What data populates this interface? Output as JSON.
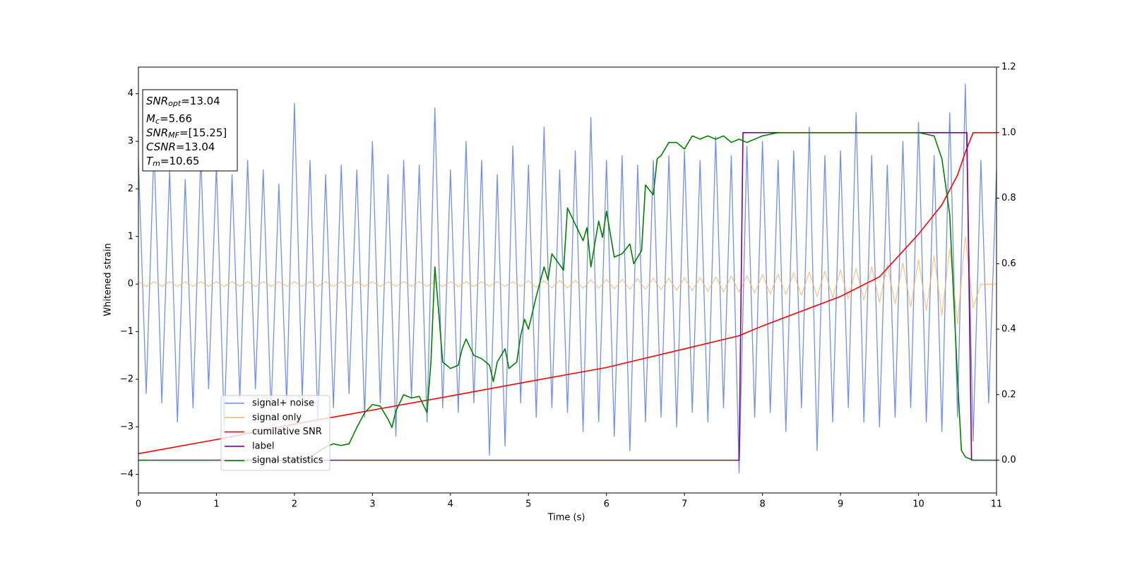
{
  "chart_data": {
    "type": "line",
    "xlabel": "Time (s)",
    "ylabel": "Whitened strain",
    "xlim": [
      0,
      11
    ],
    "ylim": [
      -4.39,
      4.56
    ],
    "y2lim": [
      -0.1,
      1.2
    ],
    "xticks": [
      0,
      1,
      2,
      3,
      4,
      5,
      6,
      7,
      8,
      9,
      10,
      11
    ],
    "yticks": [
      {
        "value": -4,
        "label": "−4"
      },
      {
        "value": -3,
        "label": "−3"
      },
      {
        "value": -2,
        "label": "−2"
      },
      {
        "value": -1,
        "label": "−1"
      },
      0,
      1,
      2,
      3,
      4
    ],
    "y2ticks": [
      {
        "value": 0,
        "label": "0.0"
      },
      0.2,
      0.4,
      0.6,
      0.8,
      {
        "value": 1,
        "label": "1.0"
      },
      1.2
    ],
    "legend_loc": "lower left",
    "annotations": [
      {
        "base": "SNR",
        "sub": "opt",
        "rest": "=13.04"
      },
      {
        "base": "M",
        "sub": "c",
        "rest": "=5.66"
      },
      {
        "base": "SNR",
        "sub": "MF",
        "rest": "=[15.25]"
      },
      {
        "base": "CSNR",
        "rest": "=13.04"
      },
      {
        "base": "T",
        "sub": "m",
        "rest": "=10.65"
      }
    ],
    "x": [
      0,
      0.1,
      0.2,
      0.3,
      0.4,
      0.5,
      0.6,
      0.7,
      0.8,
      0.9,
      1,
      1.1,
      1.2,
      1.3,
      1.4,
      1.5,
      1.6,
      1.7,
      1.8,
      1.9,
      2,
      2.1,
      2.2,
      2.3,
      2.4,
      2.5,
      2.6,
      2.7,
      2.8,
      2.9,
      3,
      3.1,
      3.2,
      3.3,
      3.4,
      3.5,
      3.6,
      3.7,
      3.8,
      3.9,
      4,
      4.1,
      4.2,
      4.3,
      4.4,
      4.5,
      4.6,
      4.7,
      4.8,
      4.9,
      5,
      5.1,
      5.2,
      5.3,
      5.4,
      5.5,
      5.6,
      5.7,
      5.8,
      5.9,
      6,
      6.1,
      6.2,
      6.3,
      6.4,
      6.5,
      6.6,
      6.7,
      6.8,
      6.9,
      7,
      7.1,
      7.2,
      7.3,
      7.4,
      7.5,
      7.6,
      7.7,
      7.8,
      7.9,
      8,
      8.1,
      8.2,
      8.3,
      8.4,
      8.5,
      8.6,
      8.7,
      8.8,
      8.9,
      9,
      9.1,
      9.2,
      9.3,
      9.4,
      9.5,
      9.6,
      9.7,
      9.8,
      9.9,
      10,
      10.1,
      10.2,
      10.3,
      10.4,
      10.5,
      10.6,
      10.7,
      10.8,
      10.9,
      11
    ],
    "series": [
      {
        "name": "signal+ noise",
        "color": "#7190e8",
        "values": [
          2.6,
          -2.3,
          2.9,
          -2.5,
          2.4,
          -2.9,
          2.2,
          -2.6,
          2.7,
          -2.2,
          2.5,
          -3.0,
          2.3,
          -2.4,
          2.6,
          -2.2,
          2.4,
          -2.7,
          2.1,
          -2.5,
          3.8,
          -2.4,
          2.6,
          -2.9,
          2.3,
          -2.6,
          2.5,
          -2.3,
          2.4,
          -2.8,
          3.0,
          -2.5,
          2.3,
          -3.2,
          2.6,
          -2.4,
          2.5,
          -2.9,
          3.7,
          -2.6,
          2.4,
          -2.7,
          3.0,
          -2.5,
          2.6,
          -3.6,
          2.3,
          -3.4,
          2.9,
          -2.5,
          2.5,
          -2.8,
          3.3,
          -2.6,
          2.4,
          -2.7,
          2.8,
          -3.1,
          3.5,
          -2.9,
          2.6,
          -3.2,
          2.7,
          -3.5,
          2.5,
          -2.9,
          2.6,
          -2.8,
          2.7,
          -3.0,
          2.8,
          -2.7,
          2.6,
          -2.9,
          3.1,
          -2.6,
          2.7,
          -3.97,
          2.9,
          -2.8,
          3.0,
          -2.7,
          2.6,
          -3.1,
          2.8,
          -2.6,
          3.3,
          -3.5,
          2.7,
          -2.9,
          2.8,
          -2.6,
          3.6,
          -2.9,
          2.7,
          -3.0,
          2.5,
          -2.8,
          3.0,
          -2.6,
          3.4,
          -2.9,
          2.7,
          -3.1,
          3.6,
          -2.8,
          4.2,
          -3.3,
          2.6,
          -2.5,
          2.4
        ]
      },
      {
        "name": "signal only",
        "color": "#f5b65c",
        "values": [
          0.05,
          -0.05,
          0.05,
          -0.05,
          0.05,
          -0.05,
          0.05,
          -0.05,
          0.05,
          -0.05,
          0.05,
          -0.05,
          0.05,
          -0.05,
          0.05,
          -0.05,
          0.05,
          -0.05,
          0.05,
          -0.05,
          0.05,
          -0.05,
          0.05,
          -0.05,
          0.05,
          -0.05,
          0.05,
          -0.05,
          0.05,
          -0.05,
          0.05,
          -0.05,
          0.05,
          -0.05,
          0.05,
          -0.05,
          0.05,
          -0.05,
          0.05,
          -0.05,
          0.05,
          -0.05,
          0.05,
          -0.05,
          0.05,
          -0.05,
          0.05,
          -0.05,
          0.05,
          -0.05,
          0.07,
          -0.07,
          0.07,
          -0.08,
          0.08,
          -0.08,
          0.08,
          -0.09,
          0.09,
          -0.09,
          0.1,
          -0.1,
          0.1,
          -0.11,
          0.11,
          -0.11,
          0.12,
          -0.12,
          0.12,
          -0.13,
          0.13,
          -0.14,
          0.14,
          -0.15,
          0.15,
          -0.16,
          0.17,
          -0.17,
          0.18,
          -0.19,
          0.2,
          -0.21,
          0.21,
          -0.22,
          0.23,
          -0.24,
          0.25,
          -0.26,
          0.27,
          -0.28,
          0.3,
          -0.31,
          0.33,
          -0.34,
          0.36,
          -0.38,
          0.4,
          -0.42,
          0.45,
          -0.48,
          0.52,
          -0.56,
          0.6,
          -0.66,
          0.74,
          -0.84,
          1.0,
          -0.5,
          0,
          0,
          0
        ]
      },
      {
        "name": "cumilative SNR",
        "color": "#ff0000",
        "axis": "y2",
        "x": [
          0,
          1,
          2,
          3,
          4,
          5,
          6,
          7,
          7.7,
          8,
          9,
          9.5,
          10,
          10.3,
          10.5,
          10.6,
          10.7,
          11
        ],
        "values": [
          0.02,
          0.063,
          0.11,
          0.153,
          0.196,
          0.24,
          0.283,
          0.34,
          0.38,
          0.41,
          0.5,
          0.56,
          0.69,
          0.78,
          0.87,
          0.94,
          1.0,
          1.0
        ]
      },
      {
        "name": "label",
        "color": "#800080",
        "axis": "y2",
        "x": [
          0,
          7.7,
          7.75,
          10.62,
          10.68,
          11
        ],
        "values": [
          0,
          0,
          1,
          1,
          0,
          0
        ]
      },
      {
        "name": "signal statistics",
        "color": "#008000",
        "axis": "y2",
        "x": [
          0,
          2.0,
          2.2,
          2.3,
          2.4,
          2.5,
          2.6,
          2.7,
          2.8,
          2.9,
          3.0,
          3.1,
          3.2,
          3.25,
          3.3,
          3.4,
          3.5,
          3.6,
          3.7,
          3.75,
          3.8,
          3.85,
          3.9,
          4.0,
          4.1,
          4.15,
          4.2,
          4.3,
          4.4,
          4.5,
          4.55,
          4.6,
          4.7,
          4.75,
          4.85,
          4.9,
          4.95,
          5.0,
          5.1,
          5.2,
          5.25,
          5.3,
          5.45,
          5.5,
          5.6,
          5.7,
          5.75,
          5.8,
          5.9,
          5.95,
          6.0,
          6.05,
          6.1,
          6.2,
          6.3,
          6.35,
          6.45,
          6.5,
          6.6,
          6.65,
          6.7,
          6.8,
          6.9,
          7.0,
          7.1,
          7.2,
          7.3,
          7.4,
          7.5,
          7.6,
          7.7,
          7.8,
          7.9,
          8.0,
          8.2,
          9.0,
          9.5,
          10.0,
          10.2,
          10.3,
          10.4,
          10.5,
          10.55,
          10.6,
          10.7,
          11
        ],
        "values": [
          0,
          0,
          0.01,
          0.025,
          0.04,
          0.05,
          0.045,
          0.05,
          0.1,
          0.145,
          0.17,
          0.165,
          0.125,
          0.1,
          0.15,
          0.2,
          0.19,
          0.195,
          0.145,
          0.3,
          0.59,
          0.45,
          0.3,
          0.28,
          0.29,
          0.34,
          0.37,
          0.32,
          0.31,
          0.29,
          0.24,
          0.3,
          0.34,
          0.28,
          0.3,
          0.38,
          0.43,
          0.4,
          0.5,
          0.59,
          0.55,
          0.63,
          0.58,
          0.77,
          0.72,
          0.67,
          0.71,
          0.59,
          0.73,
          0.68,
          0.76,
          0.69,
          0.62,
          0.63,
          0.66,
          0.6,
          0.64,
          0.84,
          0.81,
          0.92,
          0.93,
          0.97,
          0.97,
          0.95,
          0.99,
          0.98,
          0.99,
          0.98,
          0.99,
          0.97,
          0.98,
          0.97,
          0.98,
          0.99,
          1.0,
          1.0,
          1.0,
          1.0,
          0.99,
          0.92,
          0.75,
          0.25,
          0.03,
          0.01,
          0,
          0
        ]
      }
    ]
  }
}
